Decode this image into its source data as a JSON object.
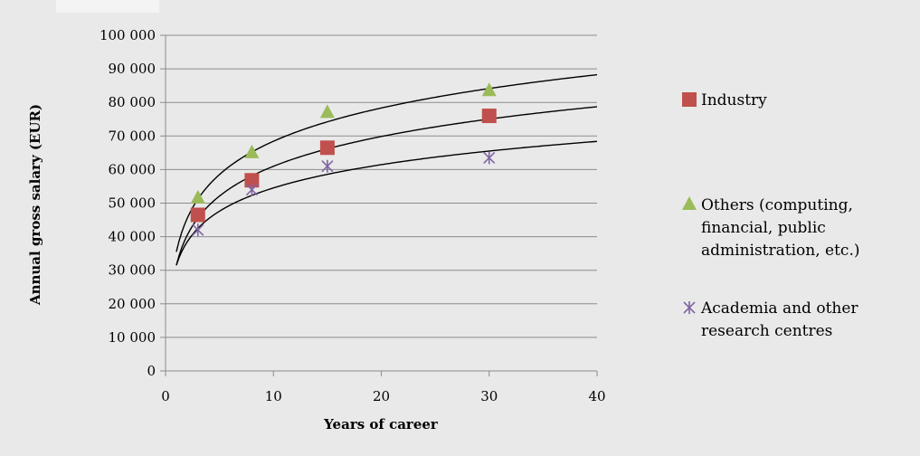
{
  "chart_data": {
    "type": "scatter",
    "title": "",
    "xlabel": "Years of career",
    "ylabel": "Annual gross salary (EUR)",
    "xlim": [
      0,
      40
    ],
    "ylim": [
      0,
      100000
    ],
    "x_ticks": [
      0,
      10,
      20,
      30,
      40
    ],
    "y_ticks": [
      0,
      10000,
      20000,
      30000,
      40000,
      50000,
      60000,
      70000,
      80000,
      90000,
      100000
    ],
    "x_tick_labels": [
      "0",
      "10",
      "20",
      "30",
      "40"
    ],
    "y_tick_labels": [
      "0",
      "10 000",
      "20 000",
      "30 000",
      "40 000",
      "50 000",
      "60 000",
      "70 000",
      "80 000",
      "90 000",
      "100 000"
    ],
    "grid": "horizontal",
    "legend_position": "right",
    "series": [
      {
        "name": "Industry",
        "marker": "square",
        "color": "#c0504d",
        "x": [
          3,
          8,
          15,
          30
        ],
        "y": [
          46500,
          56800,
          66500,
          76000
        ],
        "trendline": {
          "type": "logarithmic",
          "a": 31500,
          "b": 12800
        }
      },
      {
        "name": "Others (computing, financial, public administration, etc.)",
        "legend_lines": [
          "Others (computing,",
          "financial, public",
          "administration, etc.)"
        ],
        "marker": "triangle",
        "color": "#9bbb59",
        "x": [
          3,
          8,
          15,
          30
        ],
        "y": [
          51500,
          65000,
          77000,
          83500
        ],
        "trendline": {
          "type": "logarithmic",
          "a": 35500,
          "b": 14300
        }
      },
      {
        "name": "Academia and other research centres",
        "legend_lines": [
          "Academia and other",
          "research centres"
        ],
        "marker": "asterisk",
        "color": "#8064a2",
        "x": [
          3,
          8,
          15,
          30
        ],
        "y": [
          42000,
          54000,
          61000,
          63500
        ],
        "trendline": {
          "type": "logarithmic",
          "a": 31500,
          "b": 10000
        }
      }
    ],
    "trendline_color": "#000000"
  }
}
